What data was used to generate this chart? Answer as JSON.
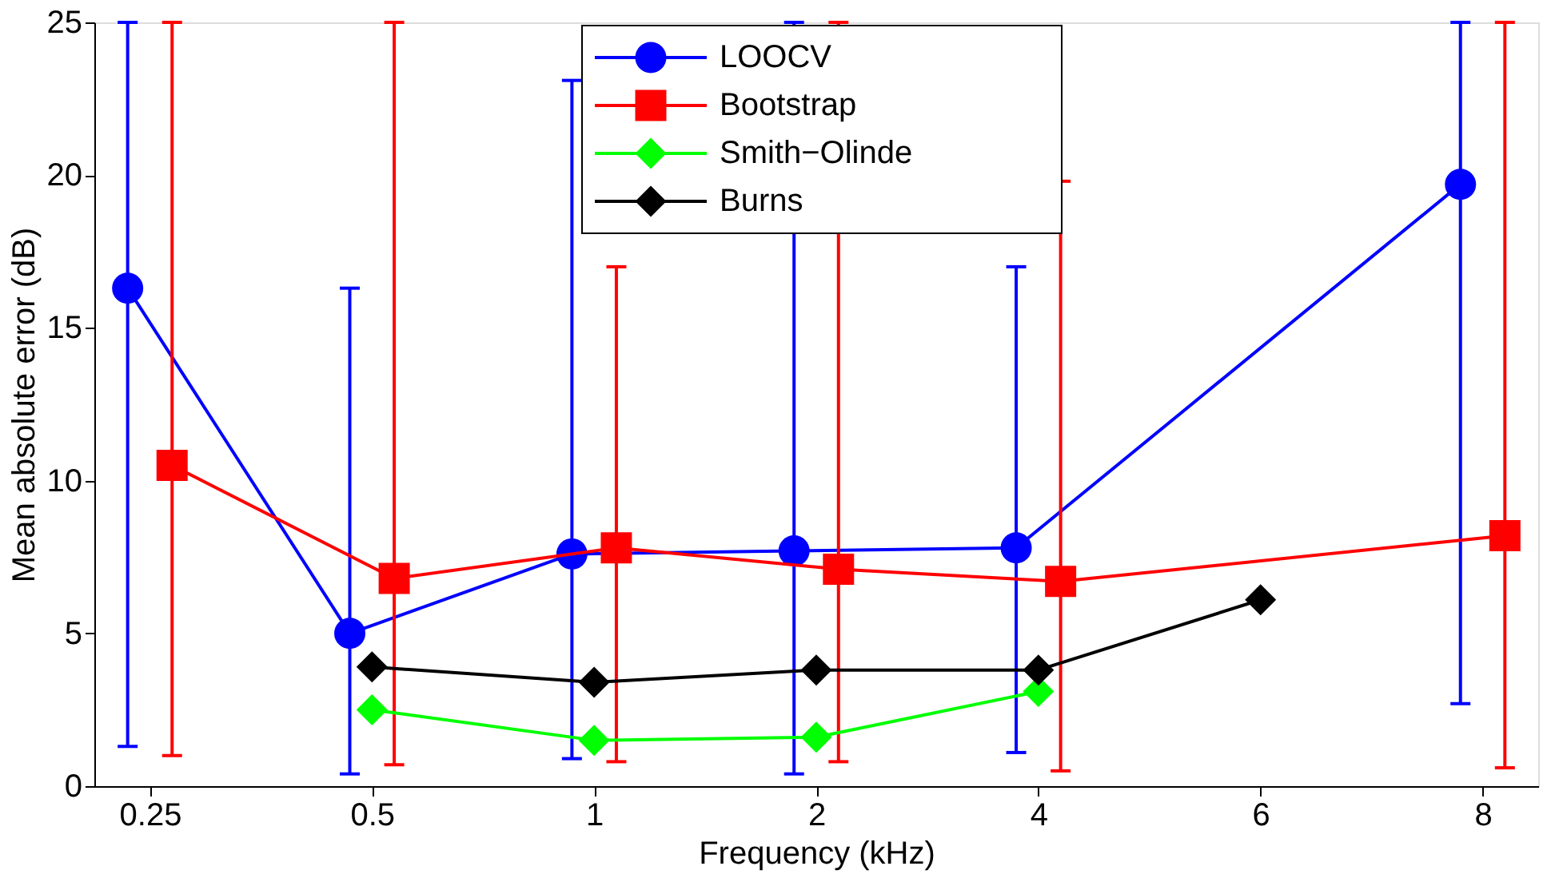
{
  "chart_data": {
    "type": "line",
    "xlabel": "Frequency (kHz)",
    "ylabel": "Mean absolute error (dB)",
    "categories": [
      "0.25",
      "0.5",
      "1",
      "2",
      "4",
      "6",
      "8"
    ],
    "ylim": [
      0,
      25
    ],
    "yticks": [
      0,
      5,
      10,
      15,
      20,
      25
    ],
    "grid": false,
    "legend": "top",
    "line_style": "solid",
    "series": [
      {
        "name": "LOOCV",
        "color": "#0000ff",
        "marker": "circle",
        "values": [
          16.3,
          5.0,
          7.6,
          7.7,
          7.8,
          null,
          19.7
        ],
        "errors": [
          [
            1.3,
            25
          ],
          [
            0.4,
            16.3
          ],
          [
            0.9,
            23.1
          ],
          [
            0.4,
            25
          ],
          [
            1.1,
            17
          ],
          null,
          [
            2.7,
            25
          ]
        ]
      },
      {
        "name": "Bootstrap",
        "color": "#ff0000",
        "marker": "square",
        "values": [
          10.5,
          6.8,
          7.8,
          7.1,
          6.7,
          null,
          8.2
        ],
        "errors": [
          [
            1.0,
            25
          ],
          [
            0.7,
            25
          ],
          [
            0.8,
            17
          ],
          [
            0.8,
            25
          ],
          [
            0.5,
            19.8
          ],
          null,
          [
            0.6,
            25
          ]
        ]
      },
      {
        "name": "Smith−Olinde",
        "color": "#00ff00",
        "marker": "diamond",
        "values": [
          null,
          2.5,
          1.5,
          1.6,
          3.1,
          null,
          null
        ]
      },
      {
        "name": "Burns",
        "color": "#000000",
        "marker": "diamond",
        "values": [
          null,
          3.9,
          3.4,
          3.8,
          3.8,
          6.1,
          null
        ]
      }
    ]
  }
}
